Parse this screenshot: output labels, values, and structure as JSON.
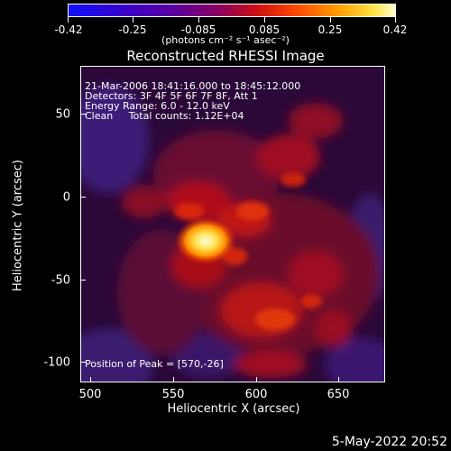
{
  "colorbar": {
    "ticks": [
      "-0.42",
      "-0.25",
      "-0.085",
      "0.085",
      "0.25",
      "0.42"
    ],
    "unit": "(photons cm⁻² s⁻¹ asec⁻²)"
  },
  "title": "Reconstructed RHESSI Image",
  "info": {
    "time": "21-Mar-2006 18:41:16.000 to 18:45:12.000",
    "detectors": "Detectors: 3F 4F 5F 6F 7F 8F, Att 1",
    "energy": "Energy Range: 6.0 - 12.0 keV",
    "clean": "Clean     Total counts: 1.12E+04",
    "peak": "Position of Peak = [570,-26]"
  },
  "axes": {
    "xlabel": "Heliocentric X (arcsec)",
    "ylabel": "Heliocentric Y (arcsec)",
    "xticks": [
      "500",
      "550",
      "600",
      "650"
    ],
    "yticks": [
      "50",
      "0",
      "-50",
      "-100"
    ]
  },
  "datestamp": "5-May-2022 20:52"
}
